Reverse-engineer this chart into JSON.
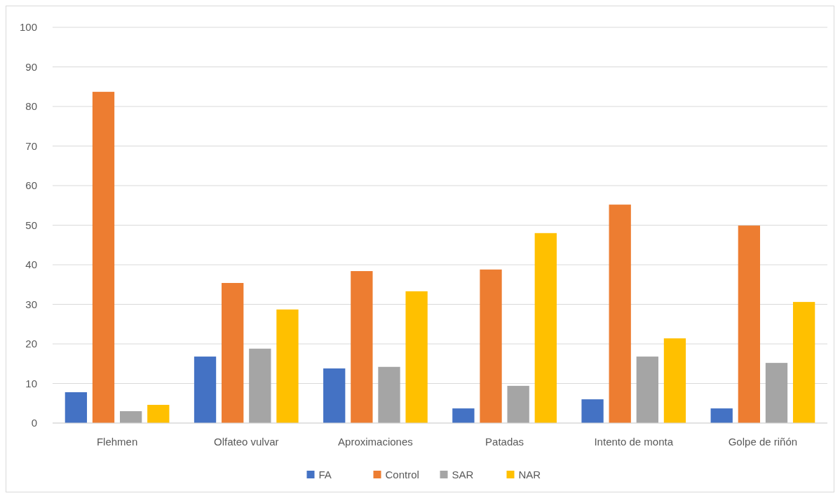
{
  "chart_data": {
    "type": "bar",
    "categories": [
      "Flehmen",
      "Olfateo vulvar",
      "Aproximaciones",
      "Patadas",
      "Intento de monta",
      "Golpe de riñón"
    ],
    "series": [
      {
        "name": "FA",
        "color": "#4472c4",
        "values": [
          7.8,
          16.8,
          13.8,
          3.7,
          6.0,
          3.7
        ]
      },
      {
        "name": "Control",
        "color": "#ed7d31",
        "values": [
          83.7,
          35.4,
          38.4,
          38.8,
          55.2,
          49.9
        ]
      },
      {
        "name": "SAR",
        "color": "#a5a5a5",
        "values": [
          3.0,
          18.8,
          14.2,
          9.4,
          16.8,
          15.2
        ]
      },
      {
        "name": "NAR",
        "color": "#ffc000",
        "values": [
          4.6,
          28.7,
          33.3,
          48.0,
          21.4,
          30.6
        ]
      }
    ],
    "ylim": [
      0,
      100
    ],
    "yticks": [
      0,
      10,
      20,
      30,
      40,
      50,
      60,
      70,
      80,
      90,
      100
    ],
    "grid": "y",
    "legend": "bottom"
  }
}
